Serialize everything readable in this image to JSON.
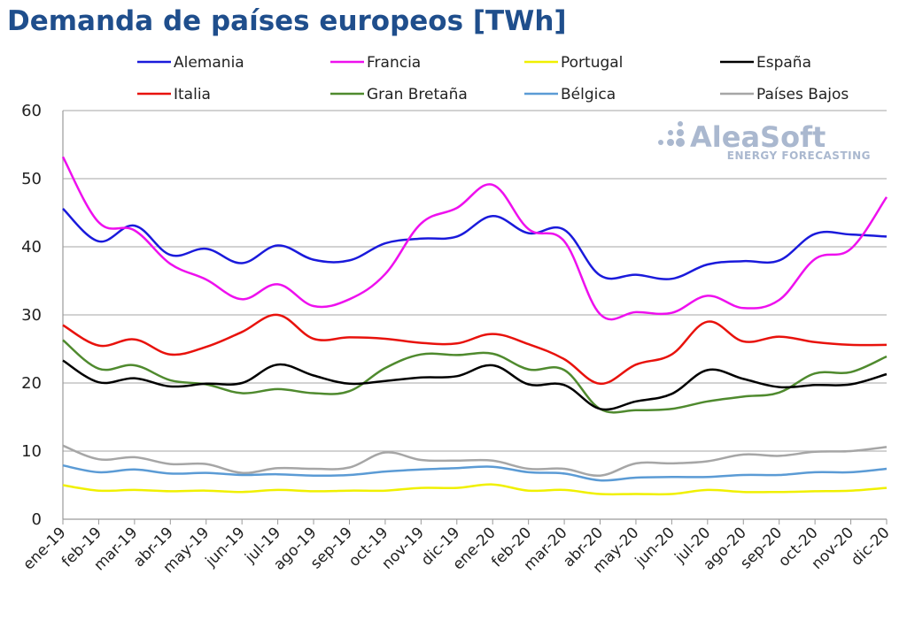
{
  "page": {
    "title": "Demanda de países europeos [TWh]"
  },
  "watermark": {
    "brand": "AleaSoft",
    "tagline": "ENERGY FORECASTING",
    "color": "#aab8cf"
  },
  "chart_data": {
    "type": "line",
    "title": "Demanda de países europeos [TWh]",
    "xlabel": "",
    "ylabel": "",
    "ylim": [
      0,
      60
    ],
    "yticks": [
      0,
      10,
      20,
      30,
      40,
      50,
      60
    ],
    "grid": true,
    "legend_position": "top",
    "categories": [
      "ene-19",
      "feb-19",
      "mar-19",
      "abr-19",
      "may-19",
      "jun-19",
      "jul-19",
      "ago-19",
      "sep-19",
      "oct-19",
      "nov-19",
      "dic-19",
      "ene-20",
      "feb-20",
      "mar-20",
      "abr-20",
      "may-20",
      "jun-20",
      "jul-20",
      "ago-20",
      "sep-20",
      "oct-20",
      "nov-20",
      "dic-20"
    ],
    "series": [
      {
        "name": "Alemania",
        "color": "#1a1adb",
        "values": [
          45.6,
          40.8,
          43.1,
          38.8,
          39.7,
          37.6,
          40.2,
          38.1,
          38.0,
          40.5,
          41.2,
          41.5,
          44.5,
          42.0,
          42.5,
          35.8,
          35.9,
          35.3,
          37.4,
          37.9,
          38.0,
          41.9,
          41.8,
          41.5
        ]
      },
      {
        "name": "Francia",
        "color": "#ee10ee",
        "values": [
          53.2,
          43.6,
          42.4,
          37.5,
          35.2,
          32.3,
          34.5,
          31.3,
          32.3,
          36.0,
          43.4,
          45.7,
          49.1,
          42.6,
          40.8,
          30.1,
          30.4,
          30.3,
          32.8,
          31.0,
          32.2,
          38.2,
          39.7,
          47.3
        ]
      },
      {
        "name": "Portugal",
        "color": "#f0f000",
        "values": [
          5.0,
          4.2,
          4.3,
          4.1,
          4.2,
          4.0,
          4.3,
          4.1,
          4.2,
          4.2,
          4.6,
          4.6,
          5.1,
          4.2,
          4.3,
          3.7,
          3.7,
          3.7,
          4.3,
          4.0,
          4.0,
          4.1,
          4.2,
          4.6
        ]
      },
      {
        "name": "España",
        "color": "#000000",
        "values": [
          23.3,
          20.1,
          20.7,
          19.5,
          19.9,
          20.0,
          22.7,
          21.1,
          19.9,
          20.3,
          20.8,
          21.0,
          22.6,
          19.8,
          19.7,
          16.2,
          17.3,
          18.4,
          21.9,
          20.6,
          19.4,
          19.7,
          19.8,
          21.3
        ]
      },
      {
        "name": "Italia",
        "color": "#e8120c",
        "values": [
          28.5,
          25.5,
          26.4,
          24.2,
          25.3,
          27.5,
          30.0,
          26.5,
          26.7,
          26.5,
          25.9,
          25.8,
          27.2,
          25.7,
          23.5,
          19.9,
          22.7,
          24.2,
          29.0,
          26.1,
          26.8,
          26.0,
          25.6,
          25.6
        ]
      },
      {
        "name": "Gran Bretaña",
        "color": "#4f8a2e",
        "values": [
          26.3,
          22.1,
          22.6,
          20.4,
          19.8,
          18.5,
          19.1,
          18.5,
          18.8,
          22.2,
          24.2,
          24.1,
          24.3,
          22.0,
          21.9,
          16.2,
          16.0,
          16.2,
          17.3,
          18.0,
          18.6,
          21.4,
          21.6,
          23.9
        ]
      },
      {
        "name": "Bélgica",
        "color": "#5b9bd5",
        "values": [
          7.9,
          6.9,
          7.3,
          6.7,
          6.8,
          6.5,
          6.6,
          6.4,
          6.5,
          7.0,
          7.3,
          7.5,
          7.7,
          6.9,
          6.7,
          5.7,
          6.1,
          6.2,
          6.2,
          6.5,
          6.5,
          6.9,
          6.9,
          7.4
        ]
      },
      {
        "name": "Países Bajos",
        "color": "#a6a6a6",
        "values": [
          10.8,
          8.8,
          9.1,
          8.1,
          8.1,
          6.8,
          7.5,
          7.4,
          7.6,
          9.8,
          8.7,
          8.6,
          8.6,
          7.4,
          7.4,
          6.4,
          8.2,
          8.2,
          8.5,
          9.5,
          9.3,
          9.9,
          10.0,
          10.6
        ]
      }
    ]
  }
}
